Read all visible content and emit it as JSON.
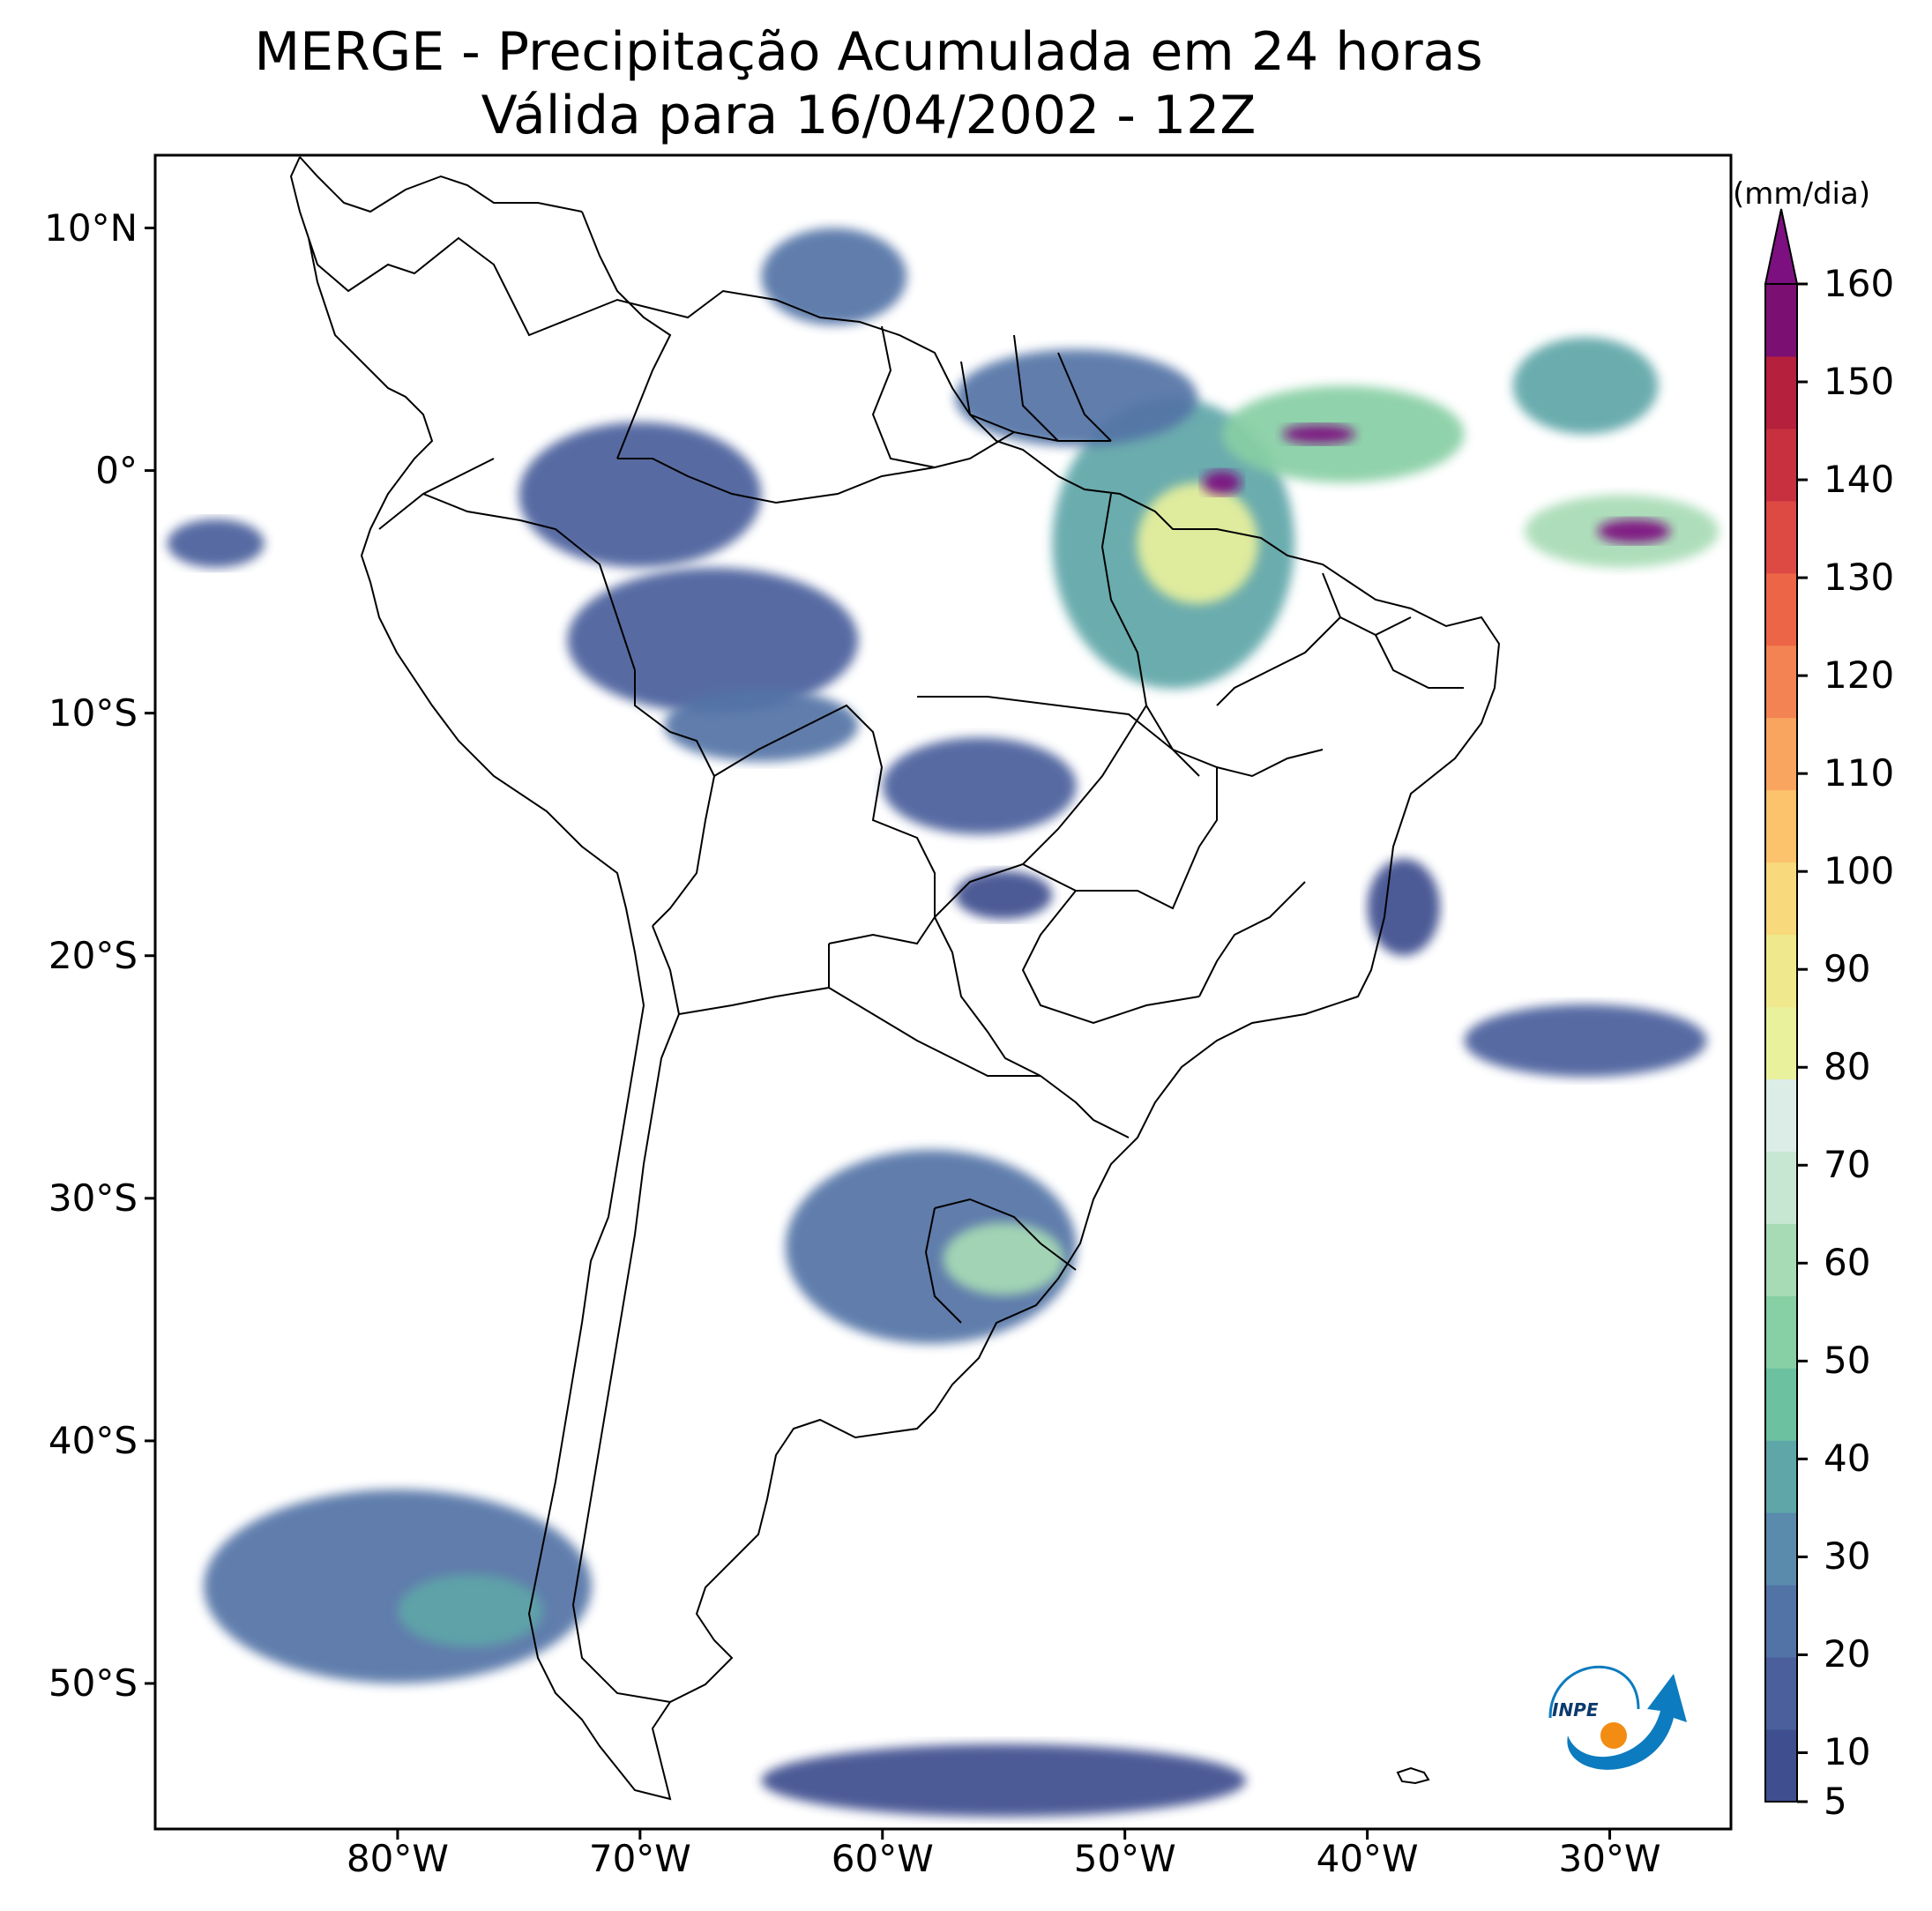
{
  "title": {
    "line1": "MERGE - Precipitação Acumulada em 24 horas",
    "line2": "Válida para 16/04/2002 - 12Z"
  },
  "map": {
    "region": "South America",
    "variable": "Precipitação acumulada em 24 horas",
    "lon_range": [
      -90,
      -25
    ],
    "lat_range": [
      -56,
      13
    ],
    "lat_ticks": [
      {
        "value": 10,
        "label": "10°N"
      },
      {
        "value": 0,
        "label": "0°"
      },
      {
        "value": -10,
        "label": "10°S"
      },
      {
        "value": -20,
        "label": "20°S"
      },
      {
        "value": -30,
        "label": "30°S"
      },
      {
        "value": -40,
        "label": "40°S"
      },
      {
        "value": -50,
        "label": "50°S"
      }
    ],
    "lon_ticks": [
      {
        "value": -80,
        "label": "80°W"
      },
      {
        "value": -70,
        "label": "70°W"
      },
      {
        "value": -60,
        "label": "60°W"
      },
      {
        "value": -50,
        "label": "50°W"
      },
      {
        "value": -40,
        "label": "40°W"
      },
      {
        "value": -30,
        "label": "30°W"
      }
    ],
    "precip_areas": [
      {
        "name": "northern-brazil-amapa",
        "lon": -48,
        "lat": -3,
        "rx": 5,
        "ry": 6,
        "level": 35
      },
      {
        "name": "para-core",
        "lon": -47,
        "lat": -3,
        "rx": 2.5,
        "ry": 2.5,
        "level": 80
      },
      {
        "name": "para-max",
        "lon": -46,
        "lat": -0.5,
        "rx": 0.8,
        "ry": 0.5,
        "level": 160
      },
      {
        "name": "guianas",
        "lon": -52,
        "lat": 3,
        "rx": 5,
        "ry": 2,
        "level": 25
      },
      {
        "name": "venezuela-coast",
        "lon": -62,
        "lat": 8,
        "rx": 3,
        "ry": 2,
        "level": 20
      },
      {
        "name": "atlantic-north-1",
        "lon": -41,
        "lat": 1.5,
        "rx": 5,
        "ry": 2,
        "level": 50
      },
      {
        "name": "atlantic-north-1-max",
        "lon": -42,
        "lat": 1.5,
        "rx": 1.5,
        "ry": 0.4,
        "level": 160
      },
      {
        "name": "atlantic-north-2",
        "lon": -31,
        "lat": 3.5,
        "rx": 3,
        "ry": 2,
        "level": 40
      },
      {
        "name": "atlantic-north-3",
        "lon": -29.5,
        "lat": -2.5,
        "rx": 4,
        "ry": 1.5,
        "level": 60
      },
      {
        "name": "atlantic-north-3-max",
        "lon": -29,
        "lat": -2.5,
        "rx": 1.5,
        "ry": 0.5,
        "level": 160
      },
      {
        "name": "western-amazon",
        "lon": -67,
        "lat": -7,
        "rx": 6,
        "ry": 3,
        "level": 15
      },
      {
        "name": "colombia-amazon",
        "lon": -70,
        "lat": -1,
        "rx": 5,
        "ry": 3,
        "level": 15
      },
      {
        "name": "bolivia-acre",
        "lon": -65,
        "lat": -10.5,
        "rx": 4,
        "ry": 1.5,
        "level": 20
      },
      {
        "name": "mato-grosso",
        "lon": -56,
        "lat": -13,
        "rx": 4,
        "ry": 2,
        "level": 15
      },
      {
        "name": "pantanal",
        "lon": -55,
        "lat": -17.5,
        "rx": 2,
        "ry": 1,
        "level": 12
      },
      {
        "name": "rio-grande-do-sul",
        "lon": -58,
        "lat": -32,
        "rx": 6,
        "ry": 4,
        "level": 20
      },
      {
        "name": "rio-grande-do-sul-core",
        "lon": -55,
        "lat": -32.5,
        "rx": 2.5,
        "ry": 1.5,
        "level": 60
      },
      {
        "name": "patagonia-pacific",
        "lon": -80,
        "lat": -46,
        "rx": 8,
        "ry": 4,
        "level": 20
      },
      {
        "name": "patagonia-core",
        "lon": -77,
        "lat": -47,
        "rx": 3,
        "ry": 1.5,
        "level": 40
      },
      {
        "name": "southern-ocean",
        "lon": -55,
        "lat": -54,
        "rx": 10,
        "ry": 1.5,
        "level": 10
      },
      {
        "name": "south-atlantic-east",
        "lon": -31,
        "lat": -23.5,
        "rx": 5,
        "ry": 1.5,
        "level": 15
      },
      {
        "name": "bahia-coast",
        "lon": -38.5,
        "lat": -18,
        "rx": 1.5,
        "ry": 2,
        "level": 12
      },
      {
        "name": "pacific-equator",
        "lon": -87.5,
        "lat": -3,
        "rx": 2,
        "ry": 1,
        "level": 15
      }
    ]
  },
  "colorbar": {
    "units": "(mm/dia)",
    "levels": [
      5,
      10,
      15,
      20,
      25,
      30,
      35,
      40,
      45,
      50,
      55,
      60,
      65,
      70,
      75,
      80,
      85,
      90,
      95,
      100,
      105,
      110,
      115,
      120,
      125,
      130,
      135,
      140,
      145,
      150,
      155,
      160
    ],
    "labels": [
      "5",
      "10",
      "20",
      "30",
      "40",
      "50",
      "60",
      "70",
      "80",
      "90",
      "100",
      "110",
      "120",
      "130",
      "140",
      "150",
      "160"
    ],
    "colors": [
      "#3e4e8e",
      "#4a5f9b",
      "#5273a6",
      "#5a8aac",
      "#5ea6a8",
      "#6cc1a0",
      "#87cfa4",
      "#a7dbb5",
      "#c8e7d3",
      "#dcede8",
      "#e9f19c",
      "#f0e88d",
      "#f8d97c",
      "#fcc26c",
      "#f9a560",
      "#f48353",
      "#ec6547",
      "#dd4a44",
      "#c83040",
      "#b5203d",
      "#7b0f72"
    ],
    "extend_color": "#7d1080"
  },
  "logo": {
    "text": "INPE",
    "blue": "#0d7bbf",
    "orange": "#f28c12"
  }
}
